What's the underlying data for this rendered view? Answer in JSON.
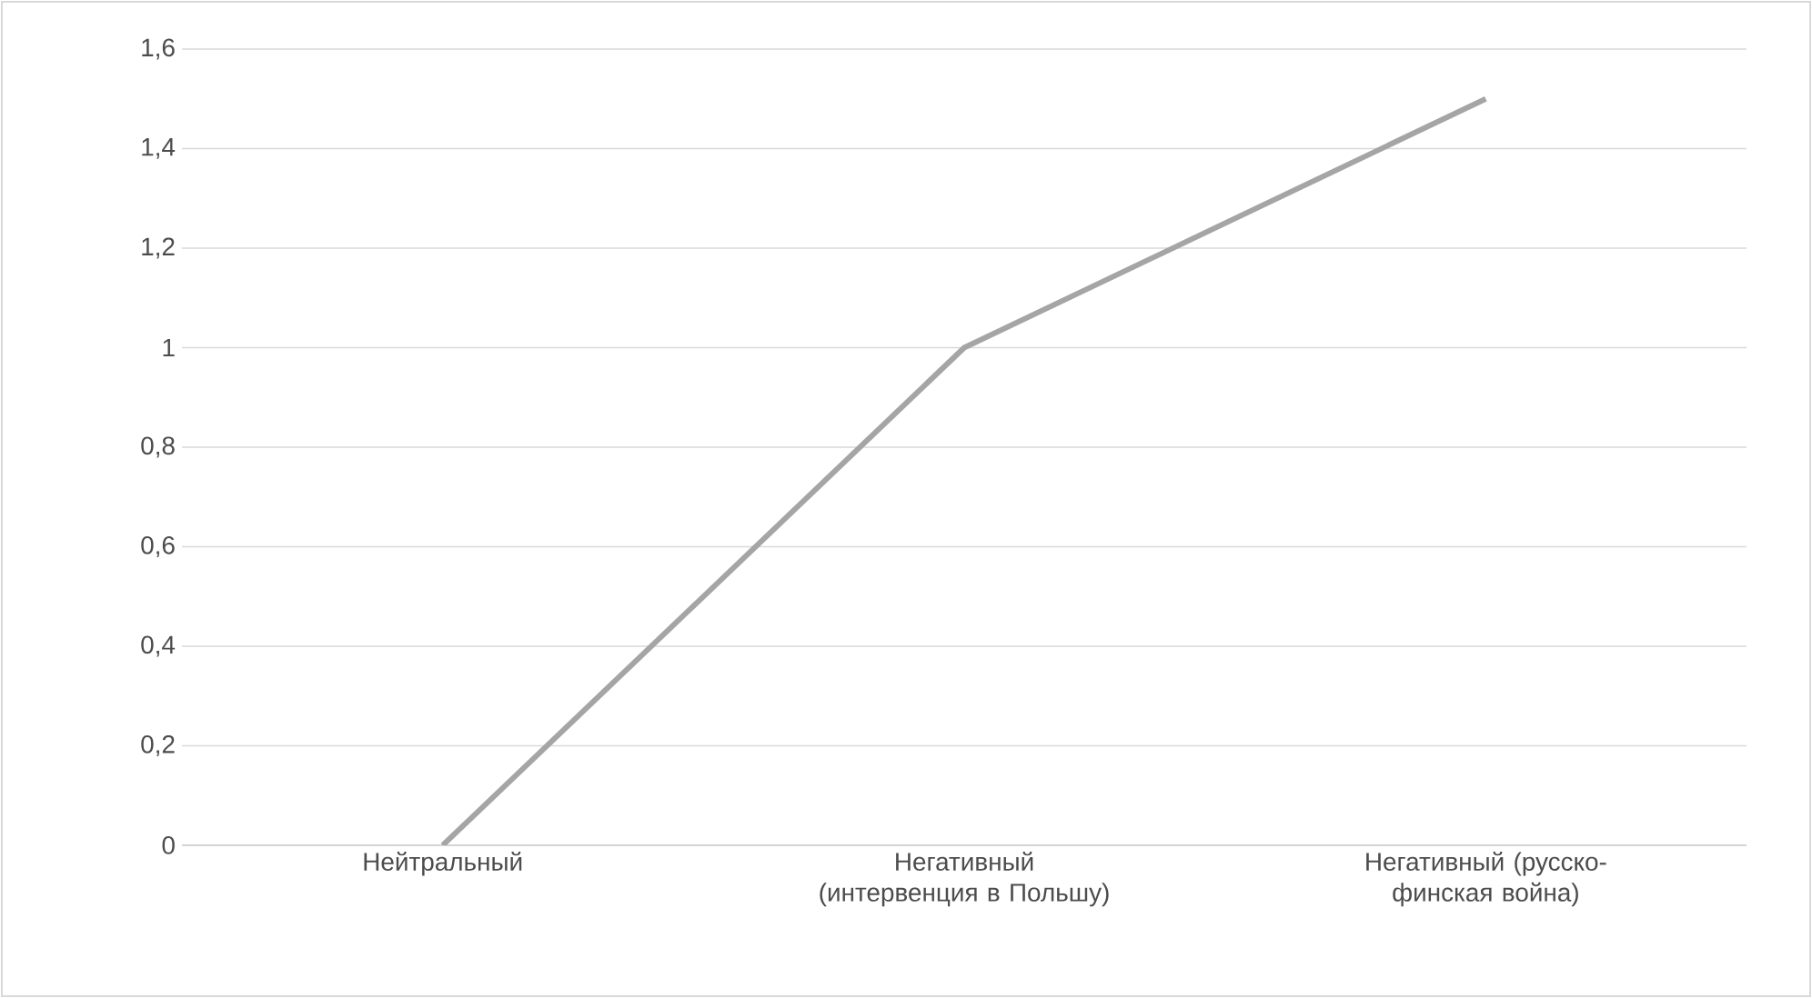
{
  "chart_data": {
    "type": "line",
    "categories": [
      "Нейтральный",
      "Негативный (интервенция в Польшу)",
      "Негативный (русско-финская война)"
    ],
    "series": [
      {
        "color": "#a5a5a5",
        "values": [
          0,
          1,
          1.5
        ]
      }
    ],
    "ylim": [
      0,
      1.6
    ],
    "yticks": [
      0,
      {
        "value": 0.2,
        "label": "0,2"
      },
      {
        "value": 0.4,
        "label": "0,4"
      },
      {
        "value": 0.6,
        "label": "0,6"
      },
      {
        "value": 0.8,
        "label": "0,8"
      },
      1,
      {
        "value": 1.2,
        "label": "1,2"
      },
      {
        "value": 1.4,
        "label": "1,4"
      },
      {
        "value": 1.6,
        "label": "1,6"
      }
    ],
    "grid": "y",
    "legend": false,
    "marker": "none",
    "line_style": "solid"
  }
}
